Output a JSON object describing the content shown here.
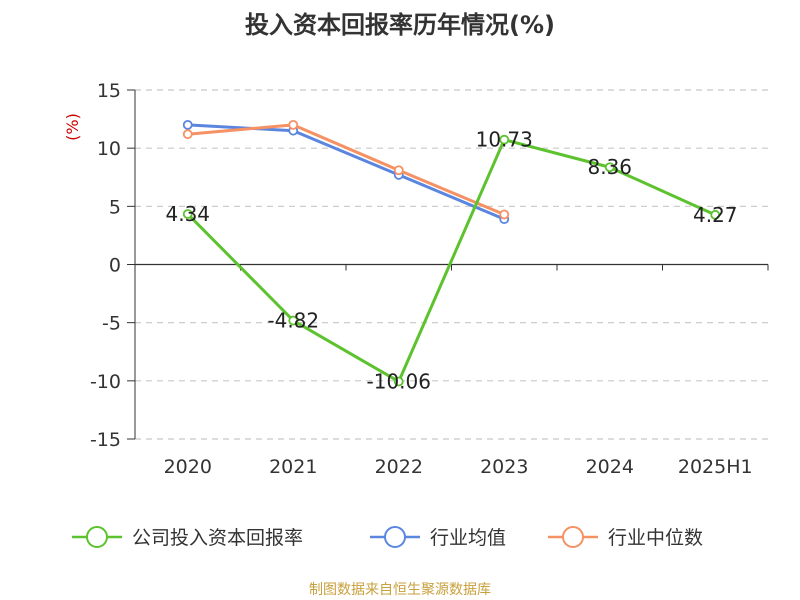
{
  "chart_data": {
    "type": "line",
    "title": "投入资本回报率历年情况(%)",
    "ylabel": "(%)",
    "categories": [
      "2020",
      "2021",
      "2022",
      "2023",
      "2024",
      "2025H1"
    ],
    "ylim": [
      -15,
      15
    ],
    "yticks": [
      15,
      10,
      5,
      0,
      -5,
      -10,
      -15
    ],
    "grid": true,
    "legend_position": "bottom",
    "series": [
      {
        "name": "公司投入资本回报率",
        "color": "#5cc22e",
        "values": [
          4.34,
          -4.82,
          -10.06,
          10.73,
          8.36,
          4.27
        ],
        "labels": [
          "4.34",
          "-4.82",
          "-10.06",
          "10.73",
          "8.36",
          "4.27"
        ]
      },
      {
        "name": "行业均值",
        "color": "#5b86e0",
        "values": [
          12.0,
          11.5,
          7.7,
          3.9,
          null,
          null
        ]
      },
      {
        "name": "行业中位数",
        "color": "#f59162",
        "values": [
          11.2,
          12.0,
          8.1,
          4.3,
          null,
          null
        ]
      }
    ]
  },
  "source": {
    "text": "制图数据来自恒生聚源数据库",
    "color": "#c8a03c"
  }
}
